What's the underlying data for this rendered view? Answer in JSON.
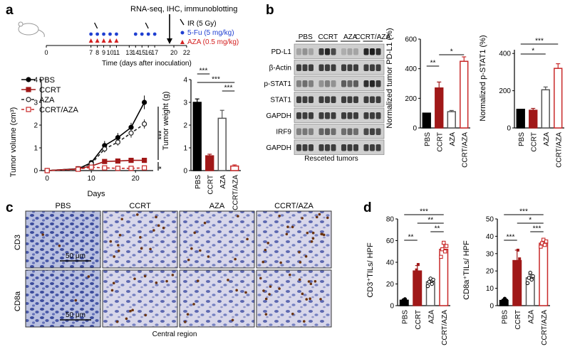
{
  "panels": {
    "a": "a",
    "b": "b",
    "c": "c",
    "d": "d"
  },
  "colors": {
    "pbs": "#000000",
    "ccrt": "#a01818",
    "aza": "#555555",
    "ccrt_aza": "#c82828",
    "fu_blue": "#1f3fd1",
    "aza_red": "#d42020"
  },
  "timeline": {
    "top_label": "RNA-seq, IHC, immunoblotting",
    "legend": [
      {
        "text": "IR (5 Gy)",
        "icon": "arrow"
      },
      {
        "text": "5-Fu (5 mg/kg)",
        "icon": "blue-dot"
      },
      {
        "text": "AZA (0.5 mg/kg)",
        "icon": "red-triangle"
      }
    ],
    "ticks": [
      "0",
      "7",
      "8",
      "9",
      "10",
      "11",
      "13",
      "14",
      "15",
      "16",
      "17",
      "20",
      "22"
    ],
    "axis_label": "Time (days after inoculation)",
    "fu_days": [
      7,
      8,
      9,
      10,
      11,
      14,
      15,
      16,
      17
    ],
    "aza_days": [
      7,
      8,
      9,
      10,
      11
    ],
    "ir_days": [
      8,
      16
    ],
    "harvest_day": 20
  },
  "chart_data": [
    {
      "type": "line",
      "id": "tumor-volume",
      "xlabel": "Days",
      "ylabel": "Tumor volume (cm³)",
      "xticks": [
        0,
        10,
        20
      ],
      "yticks": [
        0,
        1,
        2,
        3,
        4
      ],
      "xlim": [
        -1,
        24
      ],
      "ylim": [
        0,
        4
      ],
      "series": [
        {
          "name": "PBS",
          "x": [
            0,
            7,
            10,
            13,
            16,
            19,
            22
          ],
          "y": [
            0,
            0.08,
            0.35,
            1.1,
            1.45,
            1.9,
            3.0
          ],
          "err": [
            0,
            0.03,
            0.08,
            0.2,
            0.2,
            0.2,
            0.3
          ],
          "style": "solid",
          "marker": "filled-circle"
        },
        {
          "name": "CCRT",
          "x": [
            0,
            7,
            10,
            13,
            16,
            19,
            22
          ],
          "y": [
            0,
            0.08,
            0.2,
            0.4,
            0.42,
            0.45,
            0.45
          ],
          "err": [
            0,
            0.02,
            0.04,
            0.06,
            0.06,
            0.06,
            0.06
          ],
          "style": "solid",
          "marker": "filled-square"
        },
        {
          "name": "AZA",
          "x": [
            0,
            7,
            10,
            13,
            16,
            19,
            22
          ],
          "y": [
            0,
            0.08,
            0.3,
            0.95,
            1.25,
            1.65,
            2.05
          ],
          "err": [
            0,
            0.03,
            0.08,
            0.15,
            0.15,
            0.2,
            0.2
          ],
          "style": "dashed",
          "marker": "open-circle"
        },
        {
          "name": "CCRT/AZA",
          "x": [
            0,
            7,
            10,
            13,
            16,
            19,
            22
          ],
          "y": [
            0,
            0.06,
            0.15,
            0.12,
            0.1,
            0.1,
            0.12
          ],
          "err": [
            0,
            0.02,
            0.03,
            0.03,
            0.03,
            0.03,
            0.03
          ],
          "style": "dashed",
          "marker": "open-square"
        }
      ],
      "significance": [
        "***",
        "*"
      ]
    },
    {
      "type": "bar",
      "id": "tumor-weight",
      "ylabel": "Tumor weight (g)",
      "categories": [
        "PBS",
        "CCRT",
        "AZA",
        "CCRT/AZA"
      ],
      "values": [
        3.0,
        0.65,
        2.3,
        0.2
      ],
      "err": [
        0.15,
        0.07,
        0.35,
        0.05
      ],
      "yticks": [
        0,
        1,
        2,
        3,
        4
      ],
      "ylim": [
        0,
        4
      ],
      "significance": [
        {
          "from": 0,
          "to": 1,
          "text": "***"
        },
        {
          "from": 0,
          "to": 3,
          "text": "***"
        },
        {
          "from": 2,
          "to": 3,
          "text": "***"
        }
      ]
    },
    {
      "type": "bar",
      "id": "pdl1",
      "ylabel": "Normalized tumor PD-L1 (%)",
      "categories": [
        "PBS",
        "CCRT",
        "AZA",
        "CCRT/AZA"
      ],
      "values": [
        100,
        270,
        110,
        450
      ],
      "err": [
        0,
        40,
        8,
        30
      ],
      "yticks": [
        0,
        200,
        400,
        600
      ],
      "ylim": [
        0,
        600
      ],
      "significance": [
        {
          "from": 0,
          "to": 1,
          "text": "**"
        },
        {
          "from": 1,
          "to": 3,
          "text": "*"
        }
      ]
    },
    {
      "type": "bar",
      "id": "pstat1",
      "ylabel": "Normalized p-STAT1 (%)",
      "categories": [
        "PBS",
        "CCRT",
        "AZA",
        "CCRT/AZA"
      ],
      "values": [
        100,
        95,
        205,
        320
      ],
      "err": [
        0,
        10,
        15,
        25
      ],
      "yticks": [
        0,
        200,
        400
      ],
      "ylim": [
        0,
        420
      ],
      "significance": [
        {
          "from": 0,
          "to": 2,
          "text": "*"
        },
        {
          "from": 0,
          "to": 3,
          "text": "***"
        }
      ]
    },
    {
      "type": "bar",
      "id": "cd3",
      "ylabel": "CD3⁺TILs/ HPF",
      "categories": [
        "PBS",
        "CCRT",
        "AZA",
        "CCRT/AZA"
      ],
      "values": [
        5,
        32,
        22,
        52
      ],
      "err": [
        1,
        5,
        3,
        5
      ],
      "points": [
        [
          3,
          5,
          6,
          4
        ],
        [
          25,
          33,
          38,
          30
        ],
        [
          18,
          22,
          25,
          20,
          24
        ],
        [
          45,
          52,
          58,
          50,
          55
        ]
      ],
      "yticks": [
        0,
        20,
        40,
        60,
        80
      ],
      "ylim": [
        0,
        80
      ],
      "significance": [
        {
          "from": 0,
          "to": 1,
          "text": "**"
        },
        {
          "from": 0,
          "to": 3,
          "text": "***"
        },
        {
          "from": 1,
          "to": 3,
          "text": "**"
        },
        {
          "from": 2,
          "to": 3,
          "text": "**"
        }
      ]
    },
    {
      "type": "bar",
      "id": "cd8a",
      "ylabel": "CD8a⁺TILs/ HPF",
      "categories": [
        "PBS",
        "CCRT",
        "AZA",
        "CCRT/AZA"
      ],
      "values": [
        3,
        26,
        16,
        36
      ],
      "err": [
        0.5,
        6,
        2,
        1.5
      ],
      "points": [
        [
          2,
          3,
          4,
          3
        ],
        [
          20,
          25,
          32,
          27
        ],
        [
          13,
          16,
          19,
          15,
          17
        ],
        [
          34,
          36,
          38,
          35,
          37
        ]
      ],
      "yticks": [
        0,
        10,
        20,
        30,
        40,
        50
      ],
      "ylim": [
        0,
        50
      ],
      "significance": [
        {
          "from": 0,
          "to": 1,
          "text": "***"
        },
        {
          "from": 0,
          "to": 3,
          "text": "***"
        },
        {
          "from": 1,
          "to": 3,
          "text": "*"
        },
        {
          "from": 2,
          "to": 3,
          "text": "***"
        }
      ]
    }
  ],
  "blot": {
    "groups": [
      "PBS",
      "CCRT",
      "AZA",
      "CCRT/AZA"
    ],
    "rows": [
      "PD-L1",
      "β-Actin",
      "p-STAT1",
      "STAT1",
      "GAPDH",
      "IRF9",
      "GAPDH"
    ],
    "caption": "Resceted tumors"
  },
  "ihc": {
    "columns": [
      "PBS",
      "CCRT",
      "AZA",
      "CCRT/AZA"
    ],
    "rows": [
      "CD3",
      "CD8a"
    ],
    "scale_bar": "50 μm",
    "caption": "Central region"
  }
}
